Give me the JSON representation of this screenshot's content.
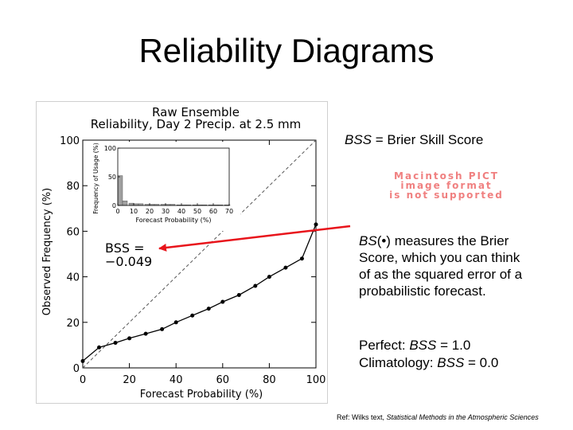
{
  "slide": {
    "title": "Reliability Diagrams",
    "bss_definition": {
      "abbrev": "BSS",
      "rest": " = Brier Skill Score"
    },
    "explanation": {
      "abbrev": "BS",
      "symbol": "(•)",
      "rest": " measures the Brier Score, which you can think of as the squared error of a probabilistic forecast."
    },
    "perfect": {
      "label": "Perfect: ",
      "abbrev": "BSS",
      "value": " = 1.0"
    },
    "climatology": {
      "label": "Climatology: ",
      "abbrev": "BSS",
      "value": " = 0.0"
    },
    "reference": {
      "prefix": "Ref: Wilks text, ",
      "book": "Statistical Methods in the Atmospheric Sciences"
    },
    "pict_placeholder": [
      "Macintosh PICT",
      "image format",
      "is not supported"
    ],
    "colors": {
      "arrow": "#e8141b",
      "pict_text": "#f08080",
      "inset_bar": "#a0a0a0"
    }
  },
  "chart_data": [
    {
      "type": "line",
      "title": "Raw Ensemble",
      "subtitle": "Reliability, Day 2 Precip. at 2.5 mm",
      "xlabel": "Forecast Probability (%)",
      "ylabel": "Observed Frequency (%)",
      "xlim": [
        0,
        100
      ],
      "ylim": [
        0,
        100
      ],
      "xticks": [
        0,
        20,
        40,
        60,
        80,
        100
      ],
      "yticks": [
        0,
        20,
        40,
        60,
        80,
        100
      ],
      "annotation": [
        "BSS =",
        "−0.049"
      ],
      "reference_line": "diagonal (perfect reliability)",
      "series": [
        {
          "x": [
            0,
            7,
            14,
            20,
            27,
            34,
            40,
            47,
            54,
            60,
            67,
            74,
            80,
            87,
            94,
            100
          ],
          "y": [
            3,
            9,
            11,
            13,
            15,
            17,
            20,
            23,
            26,
            29,
            32,
            36,
            40,
            44,
            48,
            63
          ]
        }
      ]
    },
    {
      "type": "bar",
      "title": "",
      "xlabel": "Forecast Probability (%)",
      "ylabel": "Frequency of Usage (%)",
      "xlim": [
        0,
        70
      ],
      "ylim": [
        0,
        100
      ],
      "xticks": [
        0,
        10,
        20,
        30,
        40,
        50,
        60,
        70
      ],
      "yticks": [
        0,
        50,
        100
      ],
      "x": [
        0,
        3,
        7,
        10,
        13,
        17,
        20,
        23,
        27,
        30,
        33,
        37,
        40,
        43,
        47,
        50,
        53,
        57,
        60,
        63,
        67,
        70
      ],
      "values": [
        52,
        8,
        4,
        3,
        3,
        2,
        2,
        2,
        2,
        2,
        2,
        1,
        1,
        1,
        1,
        1,
        1,
        1,
        1,
        1,
        1,
        1
      ]
    }
  ]
}
